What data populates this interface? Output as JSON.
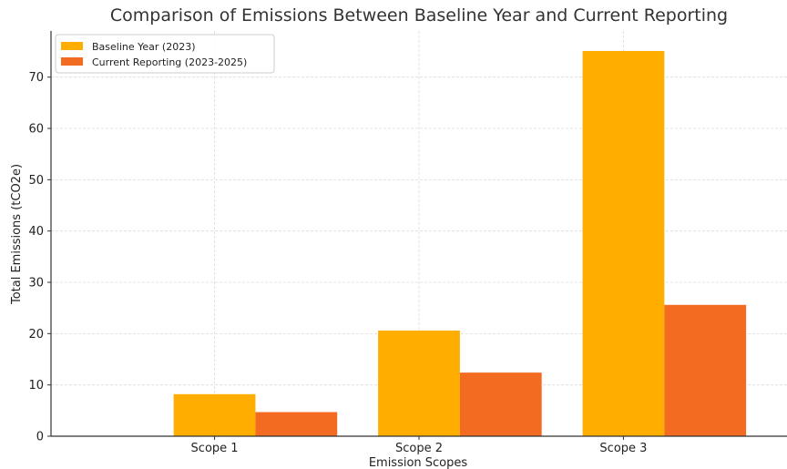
{
  "chart_data": {
    "type": "bar",
    "title": "Comparison of Emissions Between Baseline Year and Current Reporting",
    "xlabel": "Emission Scopes",
    "ylabel": "Total Emissions (tCO2e)",
    "categories": [
      "Scope 1",
      "Scope 2",
      "Scope 3"
    ],
    "series": [
      {
        "name": "Baseline Year (2023)",
        "values": [
          8.2,
          20.6,
          75.1
        ],
        "color": "#ffae00"
      },
      {
        "name": "Current Reporting (2023-2025)",
        "values": [
          4.7,
          12.4,
          25.6
        ],
        "color": "#f26b21"
      }
    ],
    "ylim": [
      0,
      79
    ],
    "yticks": [
      0,
      10,
      20,
      30,
      40,
      50,
      60,
      70
    ],
    "grid": true,
    "legend_position": "top-left"
  }
}
